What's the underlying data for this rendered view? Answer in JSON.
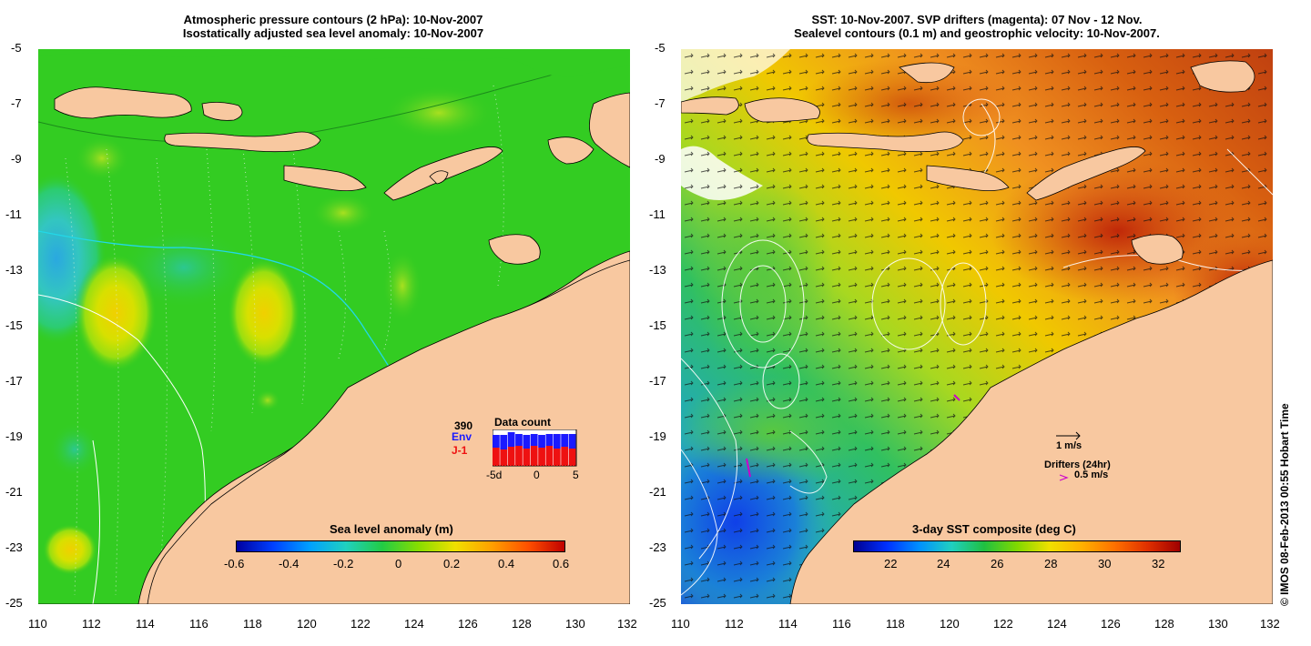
{
  "left": {
    "title_line1": "Atmospheric pressure contours (2 hPa): 10-Nov-2007",
    "title_line2": "Isostatically adjusted sea level anomaly: 10-Nov-2007",
    "colorbar_title": "Sea level anomaly (m)",
    "colorbar_ticks": [
      "-0.6",
      "-0.4",
      "-0.2",
      "0",
      "0.2",
      "0.4",
      "0.6"
    ],
    "data_count": {
      "title": "Data count",
      "total": "390",
      "env_label": "Env",
      "j1_label": "J-1",
      "axis_ticks": [
        "-5d",
        "0",
        "5"
      ],
      "env_color": "#1a1aff",
      "j1_color": "#ee1111"
    }
  },
  "right": {
    "title_line1": "SST: 10-Nov-2007. SVP drifters (magenta): 07 Nov - 12 Nov.",
    "title_line2": "Sealevel contours (0.1 m) and geostrophic velocity: 10-Nov-2007.",
    "colorbar_title": "3-day SST composite (deg C)",
    "colorbar_ticks": [
      "22",
      "24",
      "26",
      "28",
      "30",
      "32"
    ],
    "vector_legend": "1 m/s",
    "drifter_legend": "Drifters (24hr)",
    "drifter_speed": "0.5 m/s",
    "drifter_color": "#cc00cc"
  },
  "axes": {
    "y_ticks": [
      "-5",
      "-7",
      "-9",
      "-11",
      "-13",
      "-15",
      "-17",
      "-19",
      "-21",
      "-23",
      "-25"
    ],
    "x_ticks": [
      "110",
      "112",
      "114",
      "116",
      "118",
      "120",
      "122",
      "124",
      "126",
      "128",
      "130",
      "132"
    ]
  },
  "credit": "© IMOS 08-Feb-2013 00:55 Hobart Time",
  "colors": {
    "land": "#f8c8a0",
    "ocean_green": "#22cc22"
  }
}
